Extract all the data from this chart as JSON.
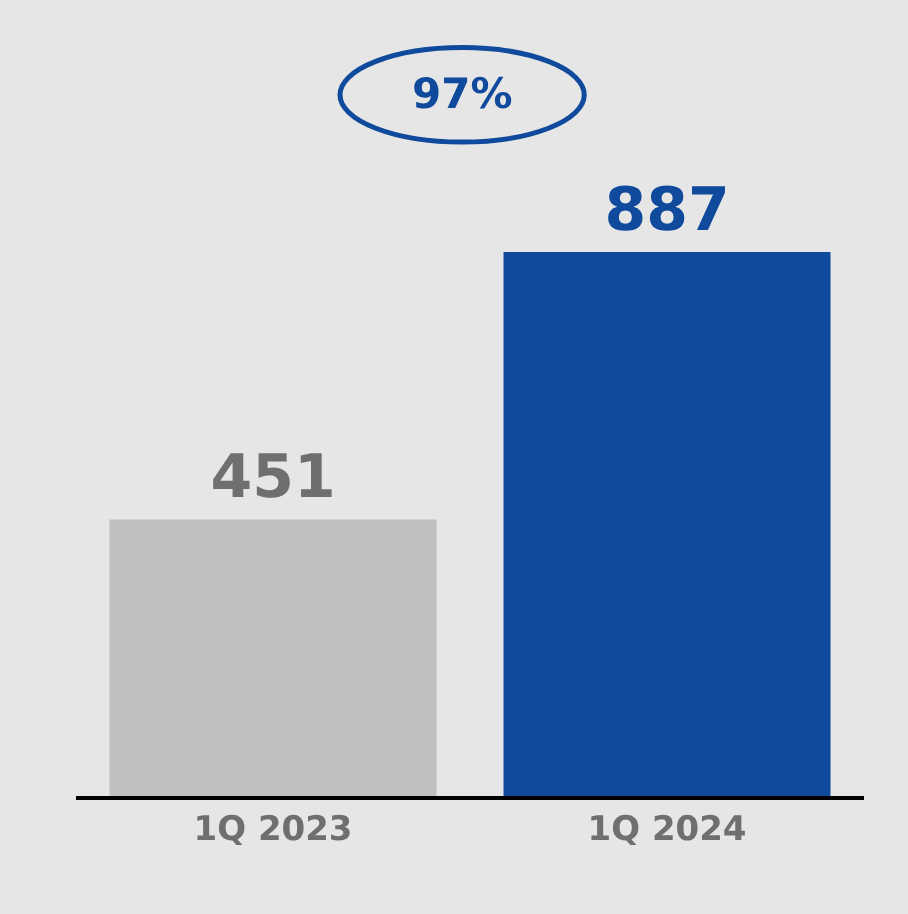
{
  "chart_data": {
    "type": "bar",
    "categories": [
      "1Q 2023",
      "1Q 2024"
    ],
    "values": [
      451,
      887
    ],
    "colors": [
      "#c0c0c0",
      "#0f4a9c"
    ],
    "data_labels": true,
    "annotations": [
      "97%"
    ]
  }
}
